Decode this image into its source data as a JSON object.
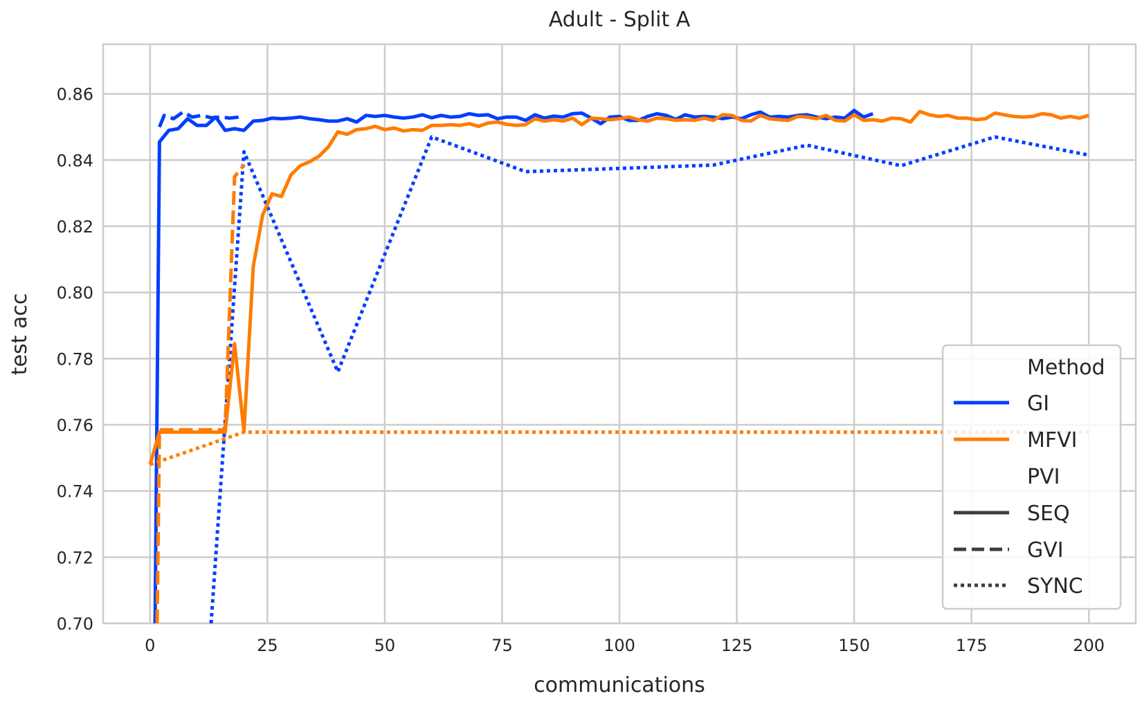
{
  "chart_data": {
    "type": "line",
    "title": "Adult - Split A",
    "xlabel": "communications",
    "ylabel": "test acc",
    "xlim": [
      -10,
      210
    ],
    "ylim": [
      0.7,
      0.875
    ],
    "xticks": [
      0,
      25,
      50,
      75,
      100,
      125,
      150,
      175,
      200
    ],
    "yticks": [
      0.7,
      0.72,
      0.74,
      0.76,
      0.78,
      0.8,
      0.82,
      0.84,
      0.86
    ],
    "xtick_labels": [
      "0",
      "25",
      "50",
      "75",
      "100",
      "125",
      "150",
      "175",
      "200"
    ],
    "ytick_labels": [
      "0.70",
      "0.72",
      "0.74",
      "0.76",
      "0.78",
      "0.80",
      "0.82",
      "0.84",
      "0.86"
    ],
    "grid": true,
    "legend_position": "bottom-right",
    "legend": {
      "hue_title": "Method",
      "hue_entries": [
        {
          "label": "GI",
          "color": "#023eff"
        },
        {
          "label": "MFVI",
          "color": "#ff7c00"
        }
      ],
      "style_title": "PVI",
      "style_entries": [
        {
          "label": "SEQ",
          "dash": "solid"
        },
        {
          "label": "GVI",
          "dash": "dashed"
        },
        {
          "label": "SYNC",
          "dash": "dotted"
        }
      ]
    },
    "series": [
      {
        "method": "GI",
        "pvi": "SEQ",
        "color": "#023eff",
        "dash": "solid",
        "x": [
          1,
          2,
          4,
          6,
          8,
          10,
          12,
          14,
          16,
          18,
          20,
          22,
          24,
          26,
          28,
          30,
          32,
          34,
          36,
          38,
          40,
          42,
          44,
          46,
          48,
          50,
          52,
          54,
          56,
          58,
          60,
          62,
          64,
          66,
          68,
          70,
          72,
          74,
          76,
          78,
          80,
          82,
          84,
          86,
          88,
          90,
          92,
          94,
          96,
          98,
          100,
          102,
          104,
          106,
          108,
          110,
          112,
          114,
          116,
          118,
          120,
          122,
          124,
          126,
          128,
          130,
          132,
          134,
          136,
          138,
          140,
          142,
          144,
          146,
          148,
          150,
          152,
          154
        ],
        "y": [
          0.69,
          0.8455,
          0.849,
          0.8495,
          0.8525,
          0.8505,
          0.8505,
          0.853,
          0.849,
          0.8495,
          0.849,
          0.8518,
          0.852,
          0.8527,
          0.8525,
          0.8527,
          0.853,
          0.8525,
          0.8522,
          0.8518,
          0.8518,
          0.8525,
          0.8515,
          0.8535,
          0.8532,
          0.8535,
          0.853,
          0.8527,
          0.853,
          0.8537,
          0.8528,
          0.8535,
          0.853,
          0.8532,
          0.854,
          0.8535,
          0.8537,
          0.8525,
          0.853,
          0.853,
          0.852,
          0.8537,
          0.8527,
          0.8533,
          0.853,
          0.854,
          0.8542,
          0.8527,
          0.851,
          0.853,
          0.8532,
          0.852,
          0.852,
          0.8532,
          0.854,
          0.8535,
          0.8523,
          0.8537,
          0.853,
          0.8532,
          0.853,
          0.8525,
          0.853,
          0.8525,
          0.8537,
          0.8545,
          0.853,
          0.8532,
          0.853,
          0.8535,
          0.8537,
          0.853,
          0.8525,
          0.853,
          0.8527,
          0.855,
          0.853,
          0.854
        ]
      },
      {
        "method": "GI",
        "pvi": "GVI",
        "color": "#023eff",
        "dash": "dashed",
        "x": [
          2,
          3,
          5,
          7,
          9,
          11,
          13,
          15,
          17,
          19
        ],
        "y": [
          0.85,
          0.8535,
          0.8525,
          0.8545,
          0.853,
          0.8535,
          0.8528,
          0.853,
          0.8527,
          0.853
        ]
      },
      {
        "method": "GI",
        "pvi": "SYNC",
        "color": "#023eff",
        "dash": "dotted",
        "x": [
          13,
          20,
          40,
          60,
          80,
          100,
          120,
          140,
          160,
          180,
          200
        ],
        "y": [
          0.7,
          0.8425,
          0.776,
          0.847,
          0.8365,
          0.8375,
          0.8385,
          0.8445,
          0.8383,
          0.847,
          0.8415
        ]
      },
      {
        "method": "MFVI",
        "pvi": "SEQ",
        "color": "#ff7c00",
        "dash": "solid",
        "x": [
          0,
          2,
          4,
          6,
          8,
          10,
          12,
          14,
          16,
          18,
          20,
          22,
          24,
          26,
          28,
          30,
          32,
          34,
          36,
          38,
          40,
          42,
          44,
          46,
          48,
          50,
          52,
          54,
          56,
          58,
          60,
          62,
          64,
          66,
          68,
          70,
          72,
          74,
          76,
          78,
          80,
          82,
          84,
          86,
          88,
          90,
          92,
          94,
          96,
          98,
          100,
          102,
          104,
          106,
          108,
          110,
          112,
          114,
          116,
          118,
          120,
          122,
          124,
          126,
          128,
          130,
          132,
          134,
          136,
          138,
          140,
          142,
          144,
          146,
          148,
          150,
          152,
          154,
          156,
          158,
          160,
          162,
          164,
          166,
          168,
          170,
          172,
          174,
          176,
          178,
          180,
          182,
          184,
          186,
          188,
          190,
          192,
          194,
          196,
          198,
          200
        ],
        "y": [
          0.748,
          0.7578,
          0.7578,
          0.7578,
          0.7578,
          0.7578,
          0.7578,
          0.7578,
          0.7578,
          0.7845,
          0.758,
          0.808,
          0.8235,
          0.8298,
          0.829,
          0.8355,
          0.8383,
          0.8395,
          0.8412,
          0.844,
          0.8485,
          0.8478,
          0.8492,
          0.8495,
          0.8502,
          0.8492,
          0.8497,
          0.8488,
          0.8492,
          0.849,
          0.8505,
          0.8505,
          0.8507,
          0.8505,
          0.851,
          0.8502,
          0.8512,
          0.8515,
          0.8508,
          0.8505,
          0.8507,
          0.8525,
          0.8518,
          0.8522,
          0.8518,
          0.8527,
          0.8507,
          0.8527,
          0.8525,
          0.8522,
          0.8525,
          0.853,
          0.8522,
          0.8518,
          0.8527,
          0.8525,
          0.852,
          0.8522,
          0.852,
          0.8527,
          0.852,
          0.8537,
          0.8535,
          0.852,
          0.8518,
          0.8535,
          0.8525,
          0.8522,
          0.852,
          0.8532,
          0.853,
          0.8525,
          0.8535,
          0.852,
          0.8518,
          0.8537,
          0.852,
          0.8522,
          0.8518,
          0.8527,
          0.8525,
          0.8515,
          0.8547,
          0.8537,
          0.8532,
          0.8535,
          0.8527,
          0.8527,
          0.8522,
          0.8525,
          0.8542,
          0.8537,
          0.8532,
          0.853,
          0.8532,
          0.854,
          0.8537,
          0.8527,
          0.8532,
          0.8527,
          0.8535
        ]
      },
      {
        "method": "MFVI",
        "pvi": "GVI",
        "color": "#ff7c00",
        "dash": "dashed",
        "x": [
          1.5,
          2,
          4,
          6,
          8,
          10,
          12,
          14,
          16,
          18,
          20
        ],
        "y": [
          0.7,
          0.7585,
          0.7585,
          0.7585,
          0.7585,
          0.7585,
          0.7585,
          0.7585,
          0.7585,
          0.835,
          0.8385
        ]
      },
      {
        "method": "MFVI",
        "pvi": "SYNC",
        "color": "#ff7c00",
        "dash": "dotted",
        "x": [
          0,
          20,
          40,
          60,
          80,
          100,
          120,
          140,
          160,
          180,
          200
        ],
        "y": [
          0.748,
          0.7578,
          0.7578,
          0.7578,
          0.7578,
          0.7578,
          0.7578,
          0.7578,
          0.7578,
          0.7578,
          0.7578
        ]
      }
    ]
  }
}
